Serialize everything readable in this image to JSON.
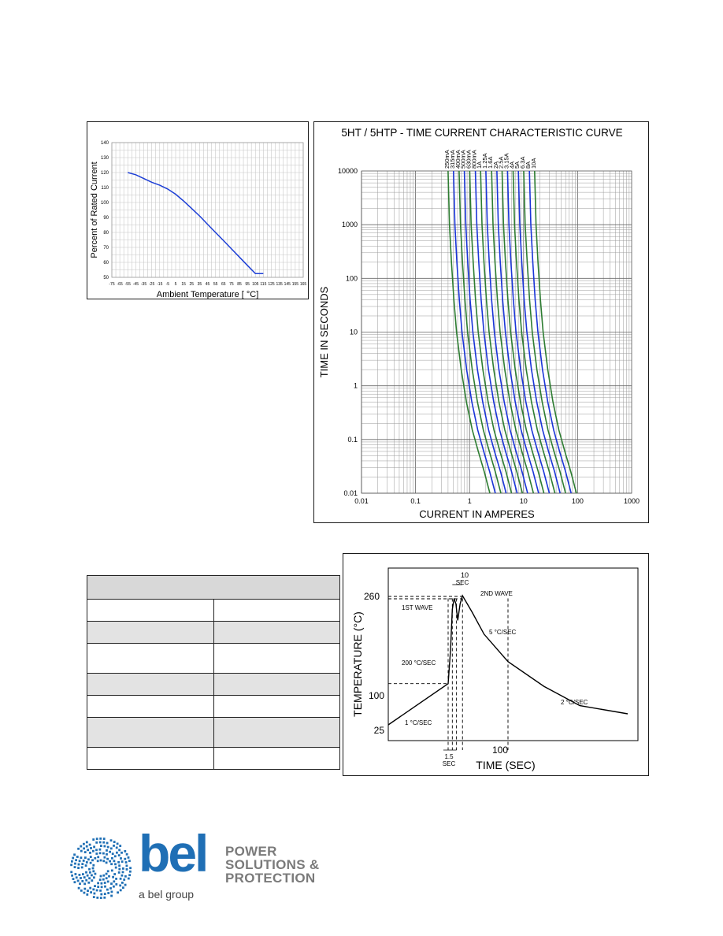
{
  "chart_data": [
    {
      "type": "line",
      "title": "",
      "xlabel": "Ambient Temperature [ °C]",
      "ylabel": "Percent of Rated Current",
      "xlim": [
        -75,
        165
      ],
      "ylim": [
        50,
        140
      ],
      "x_ticks": [
        "-75",
        "-65",
        "-55",
        "-45",
        "-35",
        "-25",
        "-15",
        "-5",
        "5",
        "15",
        "25",
        "35",
        "45",
        "55",
        "65",
        "75",
        "85",
        "95",
        "105",
        "115",
        "125",
        "135",
        "145",
        "155",
        "165"
      ],
      "y_ticks": [
        "50",
        "60",
        "70",
        "80",
        "90",
        "100",
        "110",
        "120",
        "130",
        "140"
      ],
      "grid": true,
      "series": [
        {
          "color": "#1d3fd6",
          "x": [
            -55,
            -45,
            -35,
            -25,
            -15,
            -5,
            5,
            15,
            25,
            35,
            45,
            55,
            65,
            75,
            85,
            95,
            105,
            115
          ],
          "y": [
            120,
            118.5,
            116,
            113.5,
            111.5,
            109,
            105.5,
            101,
            96,
            91,
            85.5,
            80,
            74.5,
            69,
            63.5,
            58,
            52.5,
            52.5
          ]
        }
      ]
    },
    {
      "type": "line",
      "title": "5HT / 5HTP - TIME CURRENT CHARACTERISTIC CURVE",
      "xlabel": "CURRENT IN AMPERES",
      "ylabel": "TIME IN SECONDS",
      "x_scale": "log",
      "y_scale": "log",
      "xlim": [
        0.01,
        1000
      ],
      "ylim": [
        0.01,
        10000
      ],
      "x_ticks": [
        "0.01",
        "0.1",
        "1",
        "10",
        "100",
        "1000"
      ],
      "y_ticks": [
        "0.01",
        "0.1",
        "1",
        "10",
        "100",
        "1000",
        "10000"
      ],
      "grid": true,
      "series_colors": [
        "#2e7d32",
        "#1a35d8"
      ],
      "ratings": [
        {
          "label": "250mA",
          "rating": 0.25
        },
        {
          "label": "315mA",
          "rating": 0.315
        },
        {
          "label": "400mA",
          "rating": 0.4
        },
        {
          "label": "500mA",
          "rating": 0.5
        },
        {
          "label": "630mA",
          "rating": 0.63
        },
        {
          "label": "800mA",
          "rating": 0.8
        },
        {
          "label": "1A",
          "rating": 1
        },
        {
          "label": "1.25A",
          "rating": 1.25
        },
        {
          "label": "1.6A",
          "rating": 1.6
        },
        {
          "label": "2A",
          "rating": 2
        },
        {
          "label": "2.5A",
          "rating": 2.5
        },
        {
          "label": "3.15A",
          "rating": 3.15
        },
        {
          "label": "4A",
          "rating": 4
        },
        {
          "label": "5A",
          "rating": 5
        },
        {
          "label": "6.3A",
          "rating": 6.3
        },
        {
          "label": "8A",
          "rating": 8
        },
        {
          "label": "10A",
          "rating": 10
        }
      ],
      "curve_shape": [
        {
          "multiple": 1.6,
          "time": 10000
        },
        {
          "multiple": 1.7,
          "time": 1000
        },
        {
          "multiple": 1.85,
          "time": 200
        },
        {
          "multiple": 2.05,
          "time": 40
        },
        {
          "multiple": 2.3,
          "time": 10
        },
        {
          "multiple": 2.8,
          "time": 2
        },
        {
          "multiple": 3.5,
          "time": 0.5
        },
        {
          "multiple": 4.5,
          "time": 0.15
        },
        {
          "multiple": 5.8,
          "time": 0.06
        },
        {
          "multiple": 7.5,
          "time": 0.025
        },
        {
          "multiple": 9.5,
          "time": 0.01
        }
      ]
    },
    {
      "type": "line",
      "title": "",
      "xlabel": "TIME (SEC)",
      "ylabel": "TEMPERATURE (°C)",
      "y_ticks": [
        "25",
        "100",
        "260"
      ],
      "x_ticks": [
        "100"
      ],
      "annotations": [
        "1ST WAVE",
        "2ND WAVE",
        "10",
        "SEC",
        "200 °C/SEC",
        "5 °C/SEC",
        "2 °C/SEC",
        "1 °C/SEC",
        "1.5",
        "SEC"
      ],
      "series": [
        {
          "color": "#000000",
          "x": [
            0,
            50,
            52,
            53.5,
            55,
            56.5,
            58,
            60,
            62,
            70,
            80,
            100,
            130,
            160,
            200
          ],
          "y": [
            25,
            100,
            160,
            235,
            255,
            245,
            215,
            245,
            260,
            230,
            190,
            140,
            95,
            60,
            45
          ]
        }
      ]
    }
  ],
  "page": {
    "logo": {
      "word": "bel",
      "tagline": [
        "POWER",
        "SOLUTIONS &",
        "PROTECTION"
      ],
      "subtitle": "a bel group",
      "brand_color": "#1f6fb5",
      "tagline_color": "#7a7a7a"
    }
  }
}
